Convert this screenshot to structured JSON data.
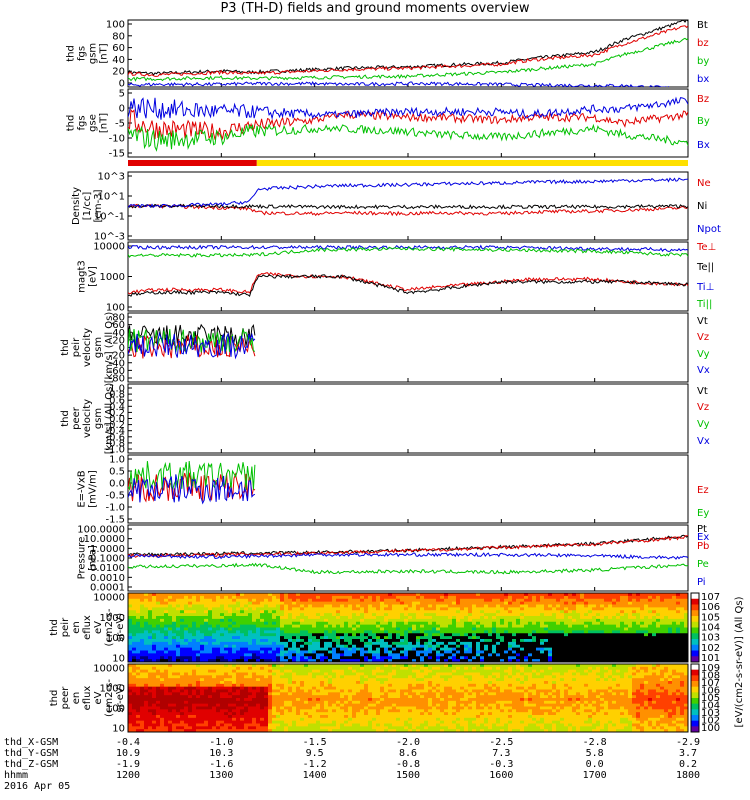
{
  "title": "P3 (TH-D) fields and ground moments overview",
  "ephemeris": {
    "rows": [
      {
        "label": "thd_X-GSM",
        "values": [
          "-0.4",
          "-1.0",
          "-1.5",
          "-2.0",
          "-2.5",
          "-2.8",
          "-2.9"
        ]
      },
      {
        "label": "thd_Y-GSM",
        "values": [
          "10.9",
          "10.3",
          "9.5",
          "8.6",
          "7.3",
          "5.8",
          "3.7"
        ]
      },
      {
        "label": "thd_Z-GSM",
        "values": [
          "-1.9",
          "-1.6",
          "-1.2",
          "-0.8",
          "-0.3",
          "0.0",
          "0.2"
        ]
      },
      {
        "label": "hhmm",
        "values": [
          "1200",
          "1300",
          "1400",
          "1500",
          "1600",
          "1700",
          "1800"
        ]
      }
    ],
    "date": "2016 Apr 05"
  },
  "colorbar_label": "[eV/(cm2-s-sr-eV)] (All Qs)",
  "chart_data": [
    {
      "type": "line",
      "ylabel": [
        "thd",
        "fgs",
        "gsm",
        "[nT]"
      ],
      "ylim": [
        0,
        100
      ],
      "yticks": [
        "100",
        "80",
        "60",
        "40",
        "20",
        "0"
      ],
      "series": [
        {
          "name": "Bt",
          "color": "#000000",
          "x": [
            1200,
            1230,
            1300,
            1330,
            1400,
            1430,
            1500,
            1530,
            1600,
            1630,
            1700,
            1730,
            1800
          ],
          "values": [
            22,
            20,
            24,
            22,
            26,
            28,
            30,
            32,
            36,
            42,
            52,
            70,
            100
          ]
        },
        {
          "name": "bz",
          "color": "#e00000",
          "x": [
            1200,
            1230,
            1300,
            1330,
            1400,
            1430,
            1500,
            1530,
            1600,
            1630,
            1700,
            1730,
            1800
          ],
          "values": [
            20,
            18,
            22,
            20,
            24,
            26,
            28,
            30,
            34,
            40,
            48,
            64,
            92
          ]
        },
        {
          "name": "by",
          "color": "#00c000",
          "x": [
            1200,
            1230,
            1300,
            1330,
            1400,
            1430,
            1500,
            1530,
            1600,
            1630,
            1700,
            1730,
            1800
          ],
          "values": [
            12,
            12,
            14,
            13,
            14,
            15,
            16,
            18,
            22,
            26,
            34,
            48,
            72
          ]
        },
        {
          "name": "bx",
          "color": "#0000e0",
          "x": [
            1200,
            1230,
            1300,
            1330,
            1400,
            1430,
            1500,
            1530,
            1600,
            1630,
            1700,
            1730,
            1800
          ],
          "values": [
            3,
            4,
            4,
            5,
            5,
            4,
            5,
            5,
            4,
            3,
            2,
            2,
            -3
          ]
        }
      ]
    },
    {
      "type": "line",
      "ylabel": [
        "thd",
        "fgs",
        "gse",
        "[nT]"
      ],
      "ylim": [
        -17,
        7
      ],
      "yticks": [
        "5",
        "0",
        "-5",
        "-10",
        "-15"
      ],
      "series": [
        {
          "name": "Bz",
          "color": "#e00000",
          "x": [
            1200,
            1230,
            1300,
            1330,
            1400,
            1430,
            1500,
            1530,
            1600,
            1630,
            1700,
            1730,
            1800
          ],
          "values": [
            -4,
            -7,
            -8,
            -6,
            -4,
            -2,
            -3,
            -3,
            -4,
            -3,
            -3,
            -5,
            -2
          ]
        },
        {
          "name": "By",
          "color": "#00c000",
          "x": [
            1200,
            1230,
            1300,
            1330,
            1400,
            1430,
            1500,
            1530,
            1600,
            1630,
            1700,
            1730,
            1800
          ],
          "values": [
            -9,
            -11,
            -10,
            -8,
            -7,
            -7,
            -8,
            -9,
            -10,
            -9,
            -7,
            -9,
            -12
          ]
        },
        {
          "name": "Bx",
          "color": "#0000e0",
          "x": [
            1200,
            1230,
            1300,
            1330,
            1400,
            1430,
            1500,
            1530,
            1600,
            1630,
            1700,
            1730,
            1800
          ],
          "values": [
            1,
            0,
            -1,
            -1,
            -2,
            -2,
            -1,
            -1,
            -1,
            -2,
            0,
            0,
            3
          ]
        }
      ]
    },
    {
      "type": "line",
      "ylabel": [
        "Density",
        "[1/cc]",
        "[cm-3]"
      ],
      "yscale": "log",
      "ylim": [
        -4,
        4
      ],
      "yticks": [
        "10^3",
        "10^1",
        "10^-1",
        "10^-3"
      ],
      "series": [
        {
          "name": "Ne",
          "color": "#e00000",
          "x": [
            1200,
            1230,
            1300,
            1330,
            1340,
            1400,
            1430,
            1500,
            1530,
            1600,
            1630,
            1700,
            1730,
            1800
          ],
          "values": [
            0,
            0,
            -0.2,
            -0.3,
            -0.8,
            -0.9,
            -0.8,
            -0.9,
            -0.8,
            -0.9,
            -0.7,
            -0.6,
            -0.5,
            -0.2
          ]
        },
        {
          "name": "Ni",
          "color": "#000000",
          "x": [
            1200,
            1300,
            1400,
            1500,
            1600,
            1700,
            1800
          ],
          "values": [
            0,
            0,
            -0.1,
            -0.1,
            -0.1,
            -0.1,
            0
          ]
        },
        {
          "name": "Npot",
          "color": "#0000e0",
          "x": [
            1200,
            1230,
            1300,
            1330,
            1340,
            1400,
            1430,
            1500,
            1530,
            1600,
            1630,
            1700,
            1730,
            1800
          ],
          "values": [
            0,
            0,
            0.2,
            0.5,
            2,
            2.3,
            2.4,
            2.5,
            2.6,
            2.7,
            2.8,
            2.9,
            3,
            3.1
          ]
        }
      ]
    },
    {
      "type": "line",
      "ylabel": [
        "magt3",
        "[eV]"
      ],
      "yscale": "log",
      "ylim": [
        1.5,
        4.1
      ],
      "yticks": [
        "10000",
        "1000",
        "100"
      ],
      "series": [
        {
          "name": "Te⊥",
          "color": "#e00000",
          "x": [
            1200,
            1230,
            1300,
            1330,
            1340,
            1400,
            1430,
            1500,
            1530,
            1600,
            1630,
            1700,
            1730,
            1800
          ],
          "values": [
            2.2,
            2.3,
            2.3,
            2.2,
            2.9,
            2.8,
            2.8,
            2.3,
            2.4,
            2.6,
            2.7,
            2.7,
            2.6,
            2.5
          ]
        },
        {
          "name": "Te||",
          "color": "#000000",
          "x": [
            1200,
            1230,
            1300,
            1330,
            1340,
            1400,
            1430,
            1500,
            1530,
            1600,
            1630,
            1700,
            1730,
            1800
          ],
          "values": [
            2.1,
            2.2,
            2.2,
            2.1,
            2.8,
            2.8,
            2.8,
            2.2,
            2.3,
            2.6,
            2.6,
            2.6,
            2.6,
            2.5
          ]
        },
        {
          "name": "Ti⊥",
          "color": "#0000e0",
          "x": [
            1200,
            1300,
            1400,
            1500,
            1600,
            1700,
            1800
          ],
          "values": [
            3.9,
            3.9,
            3.9,
            3.9,
            3.9,
            3.85,
            3.8
          ]
        },
        {
          "name": "Ti||",
          "color": "#00c000",
          "x": [
            1200,
            1300,
            1330,
            1400,
            1500,
            1600,
            1700,
            1800
          ],
          "values": [
            3.6,
            3.6,
            3.6,
            3.8,
            3.85,
            3.8,
            3.75,
            3.6
          ]
        }
      ]
    },
    {
      "type": "line",
      "ylabel": [
        "thd",
        "peir",
        "velocity",
        "gsm",
        "[km/s] (All Qs)"
      ],
      "ylim": [
        -80,
        80
      ],
      "yticks": [
        "80",
        "60",
        "40",
        "20",
        "0",
        "-20",
        "-40",
        "-60",
        "-80"
      ],
      "xrange": [
        1200,
        1336
      ],
      "series": [
        {
          "name": "Vt",
          "color": "#000000",
          "x": [
            1200,
            1336
          ],
          "values": [
            25,
            25
          ]
        },
        {
          "name": "Vz",
          "color": "#e00000",
          "x": [
            1200,
            1336
          ],
          "values": [
            0,
            0
          ]
        },
        {
          "name": "Vy",
          "color": "#00c000",
          "x": [
            1200,
            1336
          ],
          "values": [
            15,
            15
          ]
        },
        {
          "name": "Vx",
          "color": "#0000e0",
          "x": [
            1200,
            1336
          ],
          "values": [
            5,
            5
          ]
        }
      ]
    },
    {
      "type": "line",
      "ylabel": [
        "thd",
        "peer",
        "velocity",
        "gsm",
        "[km/s] (All Qs)"
      ],
      "ylim": [
        -1,
        1
      ],
      "yticks": [
        "1.0",
        "0.8",
        "0.6",
        "0.4",
        "0.2",
        "0.0",
        "-0.2",
        "-0.4",
        "-0.6",
        "-0.8",
        "-1.0"
      ],
      "series": [
        {
          "name": "Vt",
          "color": "#000000",
          "x": [],
          "values": []
        },
        {
          "name": "Vz",
          "color": "#e00000",
          "x": [],
          "values": []
        },
        {
          "name": "Vy",
          "color": "#00c000",
          "x": [],
          "values": []
        },
        {
          "name": "Vx",
          "color": "#0000e0",
          "x": [],
          "values": []
        }
      ]
    },
    {
      "type": "line",
      "ylabel": [
        "E=-VxB",
        "[mV/m]"
      ],
      "ylim": [
        -1.5,
        1.1
      ],
      "yticks": [
        "1.0",
        "0.5",
        "0.0",
        "-0.5",
        "-1.0",
        "-1.5"
      ],
      "xrange": [
        1200,
        1336
      ],
      "series": [
        {
          "name": "Ez",
          "color": "#e00000",
          "x": [
            1200,
            1336
          ],
          "values": [
            -0.1,
            -0.1
          ]
        },
        {
          "name": "Ey",
          "color": "#00c000",
          "x": [
            1200,
            1336
          ],
          "values": [
            0.3,
            0.3
          ]
        },
        {
          "name": "Ex",
          "color": "#0000e0",
          "x": [
            1200,
            1336
          ],
          "values": [
            -0.2,
            -0.2
          ]
        }
      ]
    },
    {
      "type": "line",
      "ylabel": [
        "Pressure",
        "[nPa]"
      ],
      "yscale": "log",
      "ylim": [
        -4,
        2
      ],
      "yticks": [
        "100.0000",
        "10.0000",
        "1.0000",
        "0.1000",
        "0.0100",
        "0.0010",
        "0.0001"
      ],
      "series": [
        {
          "name": "Pt",
          "color": "#000000",
          "x": [
            1200,
            1300,
            1400,
            1500,
            1600,
            1700,
            1800
          ],
          "values": [
            -0.7,
            -0.6,
            -0.5,
            -0.3,
            0,
            0.3,
            1.0
          ]
        },
        {
          "name": "Pb",
          "color": "#e00000",
          "x": [
            1200,
            1300,
            1400,
            1500,
            1600,
            1700,
            1800
          ],
          "values": [
            -0.8,
            -0.7,
            -0.55,
            -0.35,
            -0.05,
            0.25,
            0.9
          ]
        },
        {
          "name": "Pe",
          "color": "#00c000",
          "x": [
            1200,
            1300,
            1340,
            1400,
            1500,
            1600,
            1700,
            1800
          ],
          "values": [
            -1.8,
            -1.7,
            -1.6,
            -2.3,
            -2.2,
            -2.3,
            -2.1,
            -1.6
          ]
        },
        {
          "name": "Pi",
          "color": "#0000e0",
          "x": [
            1200,
            1300,
            1400,
            1500,
            1600,
            1700,
            1800
          ],
          "values": [
            -0.8,
            -0.9,
            -0.7,
            -0.7,
            -0.7,
            -0.8,
            -1.0
          ]
        }
      ]
    },
    {
      "type": "heatmap",
      "ylabel": [
        "thd",
        "peir",
        "en",
        "eflux",
        "eV",
        "(cm2-s-",
        "sr-eV)"
      ],
      "yscale": "log",
      "ylim": [
        0.9,
        4.6
      ],
      "yticks": [
        "10000",
        "1000",
        "100",
        "10"
      ]
    },
    {
      "type": "heatmap",
      "ylabel": [
        "thd",
        "peer",
        "en",
        "eflux",
        "eV",
        "(cm2-s-",
        "sr-eV)"
      ],
      "yscale": "log",
      "ylim": [
        0.8,
        4.2
      ],
      "yticks": [
        "10000",
        "1000",
        "100",
        "10"
      ]
    }
  ],
  "colorbars": [
    {
      "ticks": [
        "10^7",
        "10^6",
        "10^5",
        "10^4",
        "10^3",
        "10^2",
        "10^1"
      ]
    },
    {
      "ticks": [
        "10^9",
        "10^8",
        "10^7",
        "10^6",
        "10^5",
        "10^4",
        "10^3",
        "10^2",
        "10^0"
      ]
    }
  ],
  "xaxis": {
    "range": [
      1200,
      1800
    ]
  }
}
